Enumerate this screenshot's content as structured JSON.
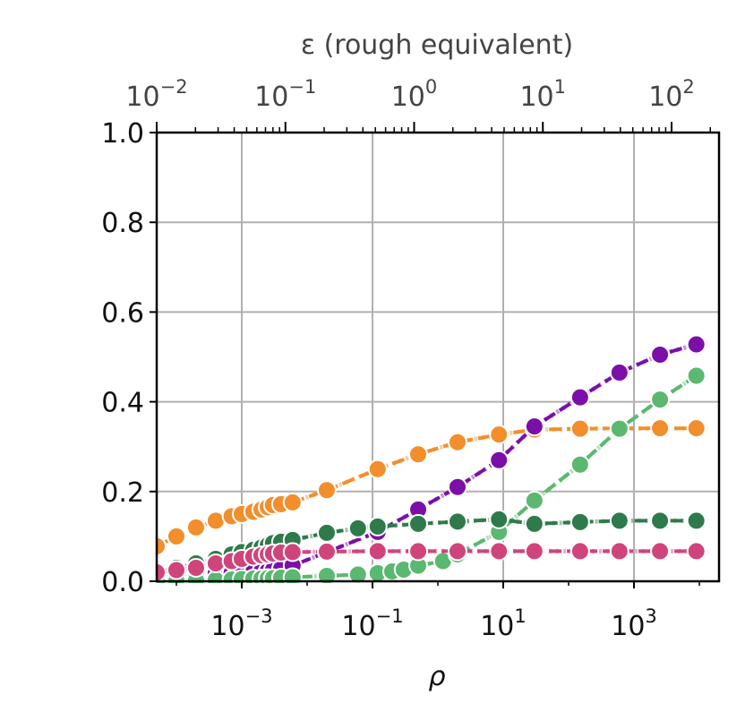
{
  "chart_data": {
    "type": "line",
    "xlabel": "ρ",
    "x_scale": "log",
    "xlim": [
      5e-05,
      20000
    ],
    "ylim": [
      0,
      1.0
    ],
    "x_ticks": [
      {
        "value": 0.001,
        "base": "10",
        "exp": "−3"
      },
      {
        "value": 0.1,
        "base": "10",
        "exp": "−1"
      },
      {
        "value": 10,
        "base": "10",
        "exp": "1"
      },
      {
        "value": 1000,
        "base": "10",
        "exp": "3"
      }
    ],
    "y_ticks": [
      {
        "value": 0.0,
        "label": "0.0"
      },
      {
        "value": 0.2,
        "label": "0.2"
      },
      {
        "value": 0.4,
        "label": "0.4"
      },
      {
        "value": 0.6,
        "label": "0.6"
      },
      {
        "value": 0.8,
        "label": "0.8"
      },
      {
        "value": 1.0,
        "label": "1.0"
      }
    ],
    "top_axis": {
      "label": "ε (rough equivalent)",
      "scale": "log",
      "ticks": [
        {
          "value": 0.01,
          "base": "10",
          "exp": "−2"
        },
        {
          "value": 0.1,
          "base": "10",
          "exp": "−1"
        },
        {
          "value": 1,
          "base": "10",
          "exp": "0"
        },
        {
          "value": 10,
          "base": "10",
          "exp": "1"
        },
        {
          "value": 100,
          "base": "10",
          "exp": "2"
        }
      ]
    },
    "grid": true,
    "series": [
      {
        "color": "#f28e2b",
        "x": [
          5e-05,
          0.0001,
          0.0002,
          0.0004,
          0.0007,
          0.001,
          0.0015,
          0.002,
          0.0025,
          0.003,
          0.004,
          0.006,
          0.02,
          0.12,
          0.5,
          2.0,
          8.6,
          30,
          150,
          600,
          2500,
          9000
        ],
        "y": [
          0.078,
          0.1,
          0.12,
          0.135,
          0.145,
          0.15,
          0.155,
          0.16,
          0.165,
          0.17,
          0.172,
          0.176,
          0.203,
          0.25,
          0.283,
          0.31,
          0.327,
          0.338,
          0.34,
          0.341,
          0.341,
          0.341
        ]
      },
      {
        "color": "#7b0fa8",
        "x": [
          5e-05,
          0.0001,
          0.0002,
          0.0004,
          0.0007,
          0.001,
          0.0015,
          0.002,
          0.0025,
          0.003,
          0.004,
          0.006,
          0.02,
          0.12,
          0.5,
          2.0,
          8.6,
          30,
          150,
          600,
          2500,
          9000
        ],
        "y": [
          0.015,
          0.016,
          0.017,
          0.018,
          0.019,
          0.02,
          0.021,
          0.022,
          0.023,
          0.025,
          0.028,
          0.035,
          0.065,
          0.11,
          0.16,
          0.21,
          0.27,
          0.345,
          0.41,
          0.465,
          0.505,
          0.528
        ]
      },
      {
        "color": "#5bb870",
        "x": [
          5e-05,
          0.0001,
          0.0002,
          0.0004,
          0.0007,
          0.001,
          0.0015,
          0.002,
          0.0025,
          0.003,
          0.004,
          0.006,
          0.02,
          0.06,
          0.12,
          0.2,
          0.3,
          0.5,
          1.2,
          2.0,
          8.6,
          30,
          150,
          600,
          2500,
          9000
        ],
        "y": [
          0.0,
          0.001,
          0.002,
          0.003,
          0.004,
          0.005,
          0.006,
          0.006,
          0.007,
          0.007,
          0.008,
          0.009,
          0.012,
          0.015,
          0.018,
          0.022,
          0.026,
          0.035,
          0.045,
          0.06,
          0.11,
          0.18,
          0.26,
          0.34,
          0.405,
          0.458
        ]
      },
      {
        "color": "#2f7a4b",
        "x": [
          5e-05,
          0.0001,
          0.0002,
          0.0004,
          0.0007,
          0.001,
          0.0015,
          0.002,
          0.0025,
          0.003,
          0.004,
          0.006,
          0.02,
          0.06,
          0.12,
          0.5,
          2.0,
          8.6,
          30,
          150,
          600,
          2500,
          9000
        ],
        "y": [
          0.02,
          0.03,
          0.04,
          0.05,
          0.06,
          0.065,
          0.07,
          0.075,
          0.08,
          0.085,
          0.088,
          0.092,
          0.108,
          0.118,
          0.122,
          0.128,
          0.133,
          0.138,
          0.128,
          0.132,
          0.135,
          0.135,
          0.135
        ]
      },
      {
        "color": "#d0447c",
        "x": [
          5e-05,
          0.0001,
          0.0002,
          0.0004,
          0.0007,
          0.001,
          0.0015,
          0.002,
          0.0025,
          0.003,
          0.004,
          0.006,
          0.02,
          0.12,
          0.5,
          2.0,
          8.6,
          30,
          150,
          600,
          2500,
          9000
        ],
        "y": [
          0.02,
          0.025,
          0.03,
          0.04,
          0.045,
          0.05,
          0.055,
          0.058,
          0.06,
          0.062,
          0.064,
          0.065,
          0.066,
          0.067,
          0.067,
          0.067,
          0.067,
          0.067,
          0.067,
          0.067,
          0.067,
          0.067
        ]
      }
    ]
  }
}
